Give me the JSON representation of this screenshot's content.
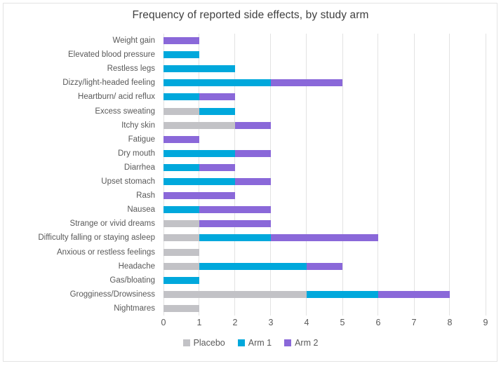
{
  "chart_data": {
    "type": "bar",
    "orientation": "horizontal",
    "stacked": true,
    "title": "Frequency of reported side effects, by study arm",
    "categories": [
      "Weight gain",
      "Elevated blood pressure",
      "Restless legs",
      "Dizzy/light-headed feeling",
      "Heartburn/ acid reflux",
      "Excess sweating",
      "Itchy skin",
      "Fatigue",
      "Dry mouth",
      "Diarrhea",
      "Upset stomach",
      "Rash",
      "Nausea",
      "Strange or vivid dreams",
      "Difficulty falling or staying asleep",
      "Anxious or restless feelings",
      "Headache",
      "Gas/bloating",
      "Grogginess/Drowsiness",
      "Nightmares"
    ],
    "series": [
      {
        "name": "Placebo",
        "color": "#c2c2c6",
        "values": [
          0,
          0,
          0,
          0,
          0,
          1,
          2,
          0,
          0,
          0,
          0,
          0,
          0,
          1,
          1,
          1,
          1,
          0,
          4,
          1
        ]
      },
      {
        "name": "Arm 1",
        "color": "#00a8dc",
        "values": [
          0,
          1,
          2,
          3,
          1,
          1,
          0,
          0,
          2,
          1,
          2,
          0,
          1,
          0,
          2,
          0,
          3,
          1,
          2,
          0
        ]
      },
      {
        "name": "Arm 2",
        "color": "#8a68d9",
        "values": [
          1,
          0,
          0,
          2,
          1,
          0,
          1,
          1,
          1,
          1,
          1,
          2,
          2,
          2,
          3,
          0,
          1,
          0,
          2,
          0
        ]
      }
    ],
    "xlabel": "",
    "ylabel": "",
    "x_axis": {
      "min": 0,
      "max": 9,
      "tick_labels": [
        "0",
        "1",
        "2",
        "3",
        "4",
        "5",
        "6",
        "7",
        "8",
        "9"
      ]
    },
    "legend_position": "bottom",
    "grid": true
  },
  "style": {
    "gridline_color": "#e2e2e2",
    "title_color": "#404040",
    "label_color": "#595959",
    "frame_border_color": "#e4e4e4",
    "background": "#ffffff"
  }
}
